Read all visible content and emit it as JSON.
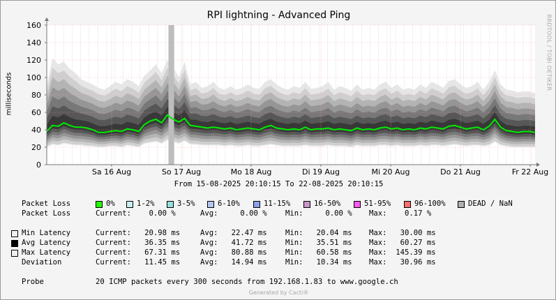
{
  "title": "RPI lightning - Advanced Ping",
  "ylabel": "milliseconds",
  "watermark": "RRDTOOL / TOBI OETIKER",
  "chart_data": {
    "type": "area",
    "title": "RPI lightning - Advanced Ping",
    "ylabel": "milliseconds",
    "xlabel": "",
    "ylim": [
      0,
      160
    ],
    "yticks": [
      0,
      20,
      40,
      60,
      80,
      100,
      120,
      140,
      160
    ],
    "xticks": [
      "Sa 16 Aug",
      "So 17 Aug",
      "Mo 18 Aug",
      "Di 19 Aug",
      "Mi 20 Aug",
      "Do 21 Aug",
      "Fr 22 Aug"
    ],
    "grid": true,
    "x_range": [
      "15-08-2025 20:10:15",
      "22-08-2025 20:10:15"
    ],
    "series": [
      {
        "name": "Avg Latency",
        "color": "#00ee00",
        "values": [
          38,
          45,
          44,
          48,
          45,
          43,
          43,
          42,
          40,
          37,
          37,
          38,
          39,
          38,
          41,
          40,
          38,
          46,
          50,
          52,
          48,
          57,
          52,
          49,
          53,
          45,
          44,
          43,
          42,
          43,
          42,
          41,
          42,
          40,
          41,
          42,
          41,
          40,
          43,
          45,
          42,
          41,
          40,
          41,
          40,
          43,
          40,
          41,
          41,
          42,
          40,
          41,
          40,
          39,
          42,
          40,
          41,
          40,
          42,
          43,
          41,
          42,
          40,
          41,
          40,
          42,
          41,
          43,
          42,
          41,
          44,
          45,
          43,
          41,
          42,
          43,
          40,
          44,
          52,
          43,
          39,
          38,
          37,
          38,
          38,
          37
        ]
      },
      {
        "name": "Max Latency",
        "values": [
          90,
          122,
          115,
          118,
          110,
          105,
          98,
          95,
          92,
          88,
          86,
          90,
          95,
          92,
          98,
          95,
          90,
          102,
          108,
          115,
          105,
          120,
          112,
          100,
          118,
          92,
          95,
          88,
          90,
          95,
          88,
          86,
          90,
          86,
          88,
          92,
          88,
          87,
          95,
          98,
          92,
          88,
          86,
          90,
          88,
          95,
          87,
          88,
          90,
          95,
          86,
          90,
          88,
          85,
          92,
          86,
          88,
          86,
          92,
          95,
          88,
          92,
          86,
          88,
          86,
          92,
          88,
          95,
          92,
          88,
          96,
          98,
          92,
          88,
          90,
          95,
          86,
          95,
          108,
          92,
          86,
          85,
          83,
          84,
          84,
          82
        ]
      },
      {
        "name": "Min Latency",
        "values": [
          20,
          23,
          22,
          24,
          23,
          22,
          22,
          21,
          21,
          20,
          20,
          21,
          21,
          20,
          22,
          21,
          20,
          24,
          25,
          26,
          24,
          28,
          26,
          24,
          27,
          23,
          23,
          22,
          22,
          22,
          22,
          21,
          22,
          21,
          21,
          22,
          21,
          21,
          22,
          23,
          22,
          21,
          21,
          21,
          21,
          22,
          21,
          21,
          21,
          22,
          21,
          21,
          21,
          20,
          22,
          21,
          21,
          21,
          22,
          22,
          21,
          22,
          21,
          21,
          21,
          22,
          21,
          22,
          22,
          21,
          22,
          23,
          22,
          21,
          22,
          22,
          21,
          22,
          26,
          22,
          21,
          20,
          20,
          20,
          20,
          20
        ]
      }
    ],
    "gap": {
      "label": "DEAD / NaN",
      "position": "So 17 Aug"
    }
  },
  "from_to": "From 15-08-2025 20:10:15 To 22-08-2025 20:10:15",
  "legend": {
    "packet_loss_label": "Packet Loss",
    "loss_items": [
      {
        "label": "0%",
        "color": "#26ff00"
      },
      {
        "label": "1-2%",
        "color": "#c8f0f0"
      },
      {
        "label": "3-5%",
        "color": "#96e0e0"
      },
      {
        "label": "6-10%",
        "color": "#b4c8f0"
      },
      {
        "label": "11-15%",
        "color": "#8ca0e8"
      },
      {
        "label": "16-50%",
        "color": "#c896c8"
      },
      {
        "label": "51-95%",
        "color": "#ff5af0"
      },
      {
        "label": "96-100%",
        "color": "#ff6e6e"
      },
      {
        "label": "DEAD / NaN",
        "color": "#b0b0b0"
      }
    ]
  },
  "stats": {
    "packet_loss": {
      "label": "Packet Loss",
      "current": "Current:    0.00 %",
      "avg": "Avg:     0.00 %",
      "min": "Min:     0.00 %",
      "max": "Max:    0.17 %"
    },
    "rows": [
      {
        "label": "Min Latency",
        "swatch": "#f0f0f0",
        "current": "Current:   20.98 ms",
        "avg": "Avg:   22.47 ms",
        "min": "Min:   20.04 ms",
        "max": "Max:   30.00 ms"
      },
      {
        "label": "Avg Latency",
        "swatch": "#000000",
        "current": "Current:   36.35 ms",
        "avg": "Avg:   41.72 ms",
        "min": "Min:   35.51 ms",
        "max": "Max:   60.27 ms"
      },
      {
        "label": "Max Latency",
        "swatch": "#f0f0f0",
        "current": "Current:   67.31 ms",
        "avg": "Avg:   80.88 ms",
        "min": "Min:   60.58 ms",
        "max": "Max:  145.39 ms"
      },
      {
        "label": "Deviation",
        "swatch": "",
        "current": "Current:   11.45 ms",
        "avg": "Avg:   14.94 ms",
        "min": "Min:   10.34 ms",
        "max": "Max:   30.96 ms"
      }
    ]
  },
  "probe": {
    "label": "Probe",
    "text": "20 ICMP packets every 300 seconds from 192.168.1.83 to www.google.ch"
  },
  "footer": "Generated by Cacti®"
}
